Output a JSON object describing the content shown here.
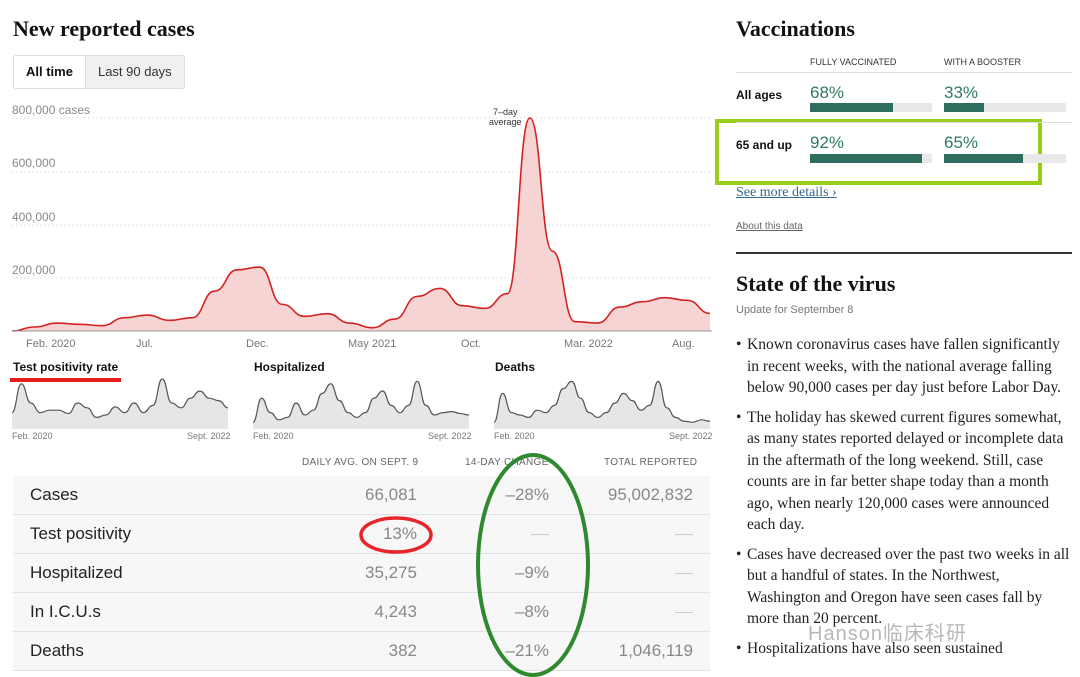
{
  "left": {
    "title": "New reported cases",
    "toggle": {
      "active": "All time",
      "inactive": "Last 90 days"
    },
    "y_labels": [
      "800,000 cases",
      "600,000",
      "400,000",
      "200,000"
    ],
    "x_labels": [
      "Feb. 2020",
      "Jul.",
      "Dec.",
      "May 2021",
      "Oct.",
      "Mar. 2022",
      "Aug."
    ],
    "annotation_line1": "7–day",
    "annotation_line2": "average",
    "small_charts": [
      {
        "title": "Test positivity rate",
        "start": "Feb. 2020",
        "end": "Sept. 2022"
      },
      {
        "title": "Hospitalized",
        "start": "Feb. 2020",
        "end": "Sept. 2022"
      },
      {
        "title": "Deaths",
        "start": "Feb. 2020",
        "end": "Sept. 2022"
      }
    ],
    "table": {
      "headers": [
        "DAILY AVG. ON SEPT. 9",
        "14-DAY CHANGE",
        "TOTAL REPORTED"
      ],
      "rows": [
        {
          "label": "Cases",
          "daily": "66,081",
          "change": "–28%",
          "total": "95,002,832"
        },
        {
          "label": "Test positivity",
          "daily": "13%",
          "change": "",
          "total": ""
        },
        {
          "label": "Hospitalized",
          "daily": "35,275",
          "change": "–9%",
          "total": ""
        },
        {
          "label": "In I.C.U.s",
          "daily": "4,243",
          "change": "–8%",
          "total": ""
        },
        {
          "label": "Deaths",
          "daily": "382",
          "change": "–21%",
          "total": "1,046,119"
        }
      ]
    }
  },
  "chart_data": {
    "type": "area",
    "title": "New reported cases",
    "ylabel": "cases",
    "ylim": [
      0,
      800000
    ],
    "x": [
      "2020-02",
      "2020-03",
      "2020-04",
      "2020-05",
      "2020-06",
      "2020-07",
      "2020-08",
      "2020-09",
      "2020-10",
      "2020-11",
      "2020-12",
      "2021-01",
      "2021-02",
      "2021-03",
      "2021-04",
      "2021-05",
      "2021-06",
      "2021-07",
      "2021-08",
      "2021-09",
      "2021-10",
      "2021-11",
      "2021-12",
      "2022-01",
      "2022-02",
      "2022-03",
      "2022-04",
      "2022-05",
      "2022-06",
      "2022-07",
      "2022-08",
      "2022-09"
    ],
    "series": [
      {
        "values": [
          0,
          15000,
          30000,
          25000,
          20000,
          50000,
          60000,
          40000,
          50000,
          150000,
          230000,
          240000,
          100000,
          55000,
          65000,
          30000,
          12000,
          45000,
          130000,
          160000,
          95000,
          85000,
          140000,
          800000,
          300000,
          35000,
          30000,
          90000,
          110000,
          125000,
          115000,
          66081
        ]
      }
    ]
  },
  "small_chart_data": [
    {
      "name": "Test positivity rate",
      "values": [
        0.3,
        0.9,
        0.5,
        0.3,
        0.35,
        0.35,
        0.28,
        0.5,
        0.4,
        0.2,
        0.25,
        0.42,
        0.3,
        0.5,
        0.3,
        0.45,
        1.0,
        0.5,
        0.4,
        0.6,
        0.75,
        0.6,
        0.55,
        0.4
      ]
    },
    {
      "name": "Hospitalized",
      "values": [
        0.1,
        0.6,
        0.3,
        0.15,
        0.2,
        0.5,
        0.25,
        0.35,
        0.7,
        0.9,
        0.55,
        0.3,
        0.2,
        0.3,
        0.6,
        0.75,
        0.45,
        0.3,
        0.45,
        0.95,
        0.45,
        0.25,
        0.3,
        0.32,
        0.28,
        0.25
      ]
    },
    {
      "name": "Deaths",
      "values": [
        0.1,
        0.7,
        0.3,
        0.25,
        0.2,
        0.35,
        0.3,
        0.45,
        0.8,
        0.95,
        0.6,
        0.3,
        0.2,
        0.3,
        0.5,
        0.7,
        0.55,
        0.35,
        0.45,
        0.95,
        0.4,
        0.2,
        0.12,
        0.1,
        0.15,
        0.12
      ]
    }
  ],
  "right": {
    "vacc_title": "Vaccinations",
    "col1": "FULLY VACCINATED",
    "col2": "WITH A BOOSTER",
    "rows": [
      {
        "label": "All ages",
        "full": "68%",
        "full_frac": 0.68,
        "boost": "33%",
        "boost_frac": 0.33
      },
      {
        "label": "65 and up",
        "full": "92%",
        "full_frac": 0.92,
        "boost": "65%",
        "boost_frac": 0.65
      }
    ],
    "details": "See more details ›",
    "about": "About this data",
    "state_title": "State of the virus",
    "update": "Update for September 8",
    "bullets": [
      "Known coronavirus cases have fallen significantly in recent weeks, with the national average falling below 90,000 cases per day just before Labor Day.",
      "The holiday has skewed current figures somewhat, as many states reported delayed or incomplete data in the aftermath of the long weekend. Still, case counts are in far better shape today than a month ago, when nearly 120,000 cases were announced each day.",
      "Cases have decreased over the past two weeks in all but a handful of states. In the Northwest, Washington and Oregon have seen cases fall by more than 20 percent.",
      "Hospitalizations have also seen sustained"
    ],
    "watermark": "Hanson临床科研"
  },
  "colors": {
    "accent": "#d42222",
    "fill": "#f7d4d4",
    "vacc_bar": "#2e6e5e",
    "vacc_text": "#2e7a66",
    "link": "#326891"
  }
}
